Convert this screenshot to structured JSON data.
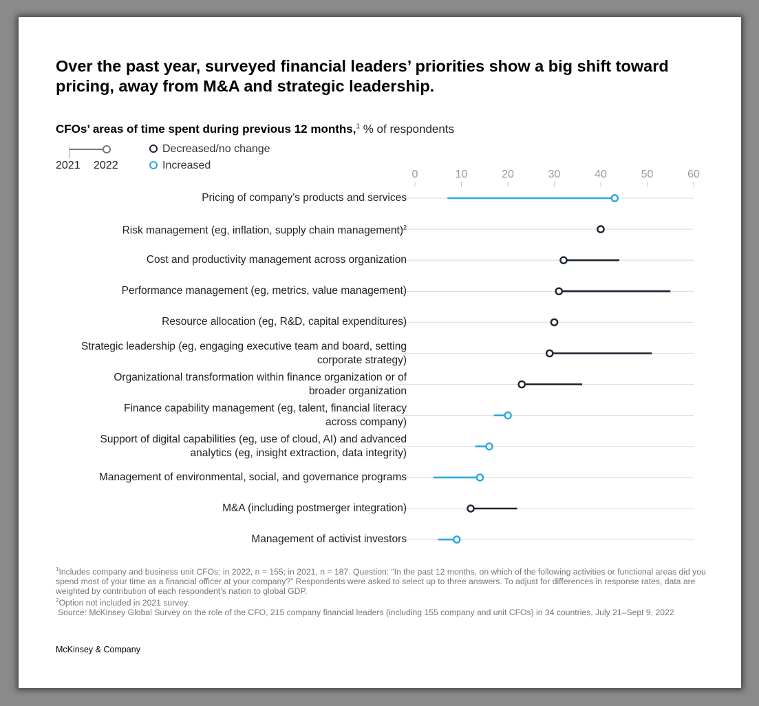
{
  "title": "Over the past year, surveyed financial leaders’ priorities show a big shift toward pricing, away from M&A and strategic leadership.",
  "subtitle_bold": "CFOs’ areas of time spent during previous 12 months,",
  "subtitle_sup": "1",
  "subtitle_unit": " % of respondents",
  "legend": {
    "year_start": "2021",
    "year_end": "2022",
    "decreased": "Decreased/no change",
    "increased": "Increased"
  },
  "colors": {
    "decreased": "#1b2430",
    "increased": "#2aa8e0",
    "grid": "#e0e0e0",
    "axis_text": "#999999"
  },
  "chart_data": {
    "type": "dumbbell",
    "xlim": [
      0,
      60
    ],
    "xticks": [
      "0",
      "10",
      "20",
      "30",
      "40",
      "50",
      "60"
    ],
    "grid": true,
    "series_names": [
      "2021",
      "2022"
    ],
    "rows": [
      {
        "label": "Pricing of company’s products and services",
        "v2021": 7,
        "v2022": 43,
        "change": "increased"
      },
      {
        "label": "Risk management (eg, inflation, supply chain management)",
        "sup": "2",
        "v2021": null,
        "v2022": 40,
        "change": "decreased"
      },
      {
        "label": "Cost and productivity management across organization",
        "v2021": 44,
        "v2022": 32,
        "change": "decreased"
      },
      {
        "label": "Performance management (eg, metrics, value management)",
        "v2021": 55,
        "v2022": 31,
        "change": "decreased"
      },
      {
        "label": "Resource allocation (eg, R&D, capital expenditures)",
        "v2021": 30,
        "v2022": 30,
        "change": "decreased"
      },
      {
        "label": "Strategic leadership (eg, engaging executive team and board, setting",
        "label2": "corporate strategy)",
        "v2021": 51,
        "v2022": 29,
        "change": "decreased"
      },
      {
        "label": "Organizational transformation within finance organization or of",
        "label2": "broader organization",
        "v2021": 36,
        "v2022": 23,
        "change": "decreased"
      },
      {
        "label": "Finance capability management (eg, talent, financial literacy",
        "label2": "across company)",
        "v2021": 17,
        "v2022": 20,
        "change": "increased"
      },
      {
        "label": "Support of digital capabilities (eg, use of cloud, AI) and advanced",
        "label2": "analytics (eg, insight extraction, data integrity)",
        "v2021": 13,
        "v2022": 16,
        "change": "increased"
      },
      {
        "label": "Management of environmental, social, and governance programs",
        "v2021": 4,
        "v2022": 14,
        "change": "increased"
      },
      {
        "label": "M&A (including postmerger integration)",
        "v2021": 22,
        "v2022": 12,
        "change": "decreased"
      },
      {
        "label": "Management of activist investors",
        "v2021": 5,
        "v2022": 9,
        "change": "increased"
      }
    ]
  },
  "footnotes": {
    "note1_sup": "1",
    "note1": "Includes company and business unit CFOs; in 2022, n = 155; in 2021, n = 187. Question: “In the past 12 months, on which of the following activities or functional areas did you spend most of your time as a financial officer at your company?” Respondents were asked to select up to three answers. To adjust for differences in response rates, data are weighted by contribution of each respondent’s nation to global GDP.",
    "note2_sup": "2",
    "note2": "Option not included in 2021 survey.",
    "source": "Source: McKinsey Global Survey on the role of the CFO, 215 company financial leaders (including 155 company and unit CFOs) in 34 countries, July 21–Sept 9, 2022"
  },
  "brand": "McKinsey & Company"
}
